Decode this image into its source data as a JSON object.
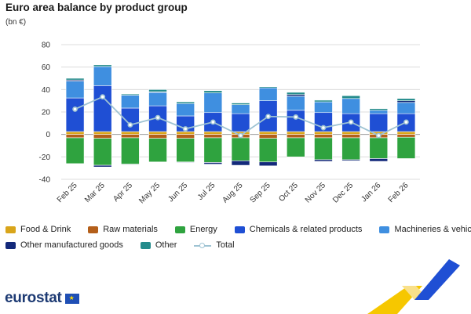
{
  "chart_data": {
    "type": "bar",
    "stacked": true,
    "title": "Euro area balance by product group",
    "subtitle": "(bn €)",
    "ylim": [
      -40,
      80
    ],
    "yticks": [
      -40,
      -20,
      0,
      20,
      40,
      60,
      80
    ],
    "grid": true,
    "legend_position": "bottom",
    "categories": [
      "Feb 25",
      "Mar 25",
      "Apr 25",
      "May 25",
      "Jun 25",
      "Jul 25",
      "Aug 25",
      "Sep 25",
      "Oct 25",
      "Nov 25",
      "Dec 25",
      "Jan 26",
      "Feb 26"
    ],
    "series": [
      {
        "name": "Food & Drink",
        "color": "#d9a51a",
        "values": [
          2.5,
          2.5,
          2.5,
          2.5,
          2.5,
          2.5,
          2.5,
          2.5,
          2.5,
          2.5,
          2.5,
          2.5,
          2.5
        ]
      },
      {
        "name": "Raw materials",
        "color": "#b45f1a",
        "values": [
          -3,
          -3.5,
          -3,
          -3.5,
          -3.5,
          -3,
          -3,
          -3.5,
          -3,
          -3,
          -3,
          -3,
          -2.5
        ]
      },
      {
        "name": "Energy",
        "color": "#2fa33f",
        "values": [
          -23,
          -24,
          -23.5,
          -21,
          -21,
          -22,
          -20.5,
          -21,
          -17,
          -19.5,
          -19.5,
          -18.5,
          -19
        ]
      },
      {
        "name": "Chemicals & related products",
        "color": "#1f4fd4",
        "values": [
          30,
          41,
          21,
          23,
          14,
          17,
          16,
          27.5,
          19,
          17,
          16,
          16,
          16
        ]
      },
      {
        "name": "Machineries & vehicles",
        "color": "#3f8fe0",
        "values": [
          15,
          17,
          11.5,
          12,
          11,
          17.5,
          8,
          11.5,
          12.5,
          9.5,
          13.5,
          3,
          10
        ]
      },
      {
        "name": "Other manufactured goods",
        "color": "#13297a",
        "values": [
          1,
          -1.5,
          -0.5,
          0.5,
          -0.5,
          -1.5,
          -4,
          -3.5,
          1.5,
          -1.5,
          -1,
          -2.5,
          1.5
        ]
      },
      {
        "name": "Other",
        "color": "#238b8b",
        "values": [
          1.5,
          1.5,
          1,
          2,
          1.5,
          2,
          1.5,
          1,
          2,
          1.5,
          2.5,
          1.5,
          2
        ]
      }
    ],
    "line_series": {
      "name": "Total",
      "color": "#9ec3d3",
      "values": [
        22.5,
        33.5,
        8.5,
        15,
        5,
        11,
        -1,
        16,
        15.5,
        6,
        11,
        -1,
        11
      ]
    }
  }
}
